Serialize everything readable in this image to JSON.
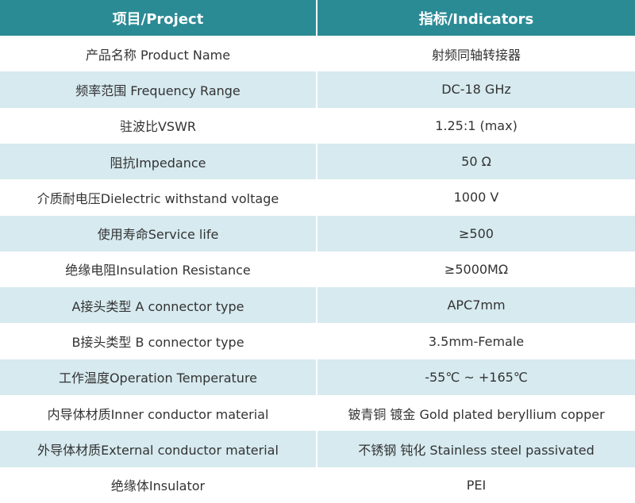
{
  "table": {
    "header": [
      "项目/Project",
      "指标/Indicators"
    ],
    "rows": [
      [
        "产品名称 Product Name",
        "射频同轴转接器"
      ],
      [
        "频率范围 Frequency Range",
        "DC-18 GHz"
      ],
      [
        "驻波比VSWR",
        "1.25:1 (max)"
      ],
      [
        "阻抗Impedance",
        "50 Ω"
      ],
      [
        "介质耐电压Dielectric withstand voltage",
        "1000 V"
      ],
      [
        "使用寿命Service life",
        "≥500"
      ],
      [
        "绝缘电阻Insulation Resistance",
        "≥5000MΩ"
      ],
      [
        "A接头类型 A connector type",
        "APC7mm"
      ],
      [
        "B接头类型 B connector type",
        "3.5mm-Female"
      ],
      [
        "工作温度Operation Temperature",
        "-55℃ ~ +165℃"
      ],
      [
        "内导体材质Inner conductor material",
        "铍青铜 镀金 Gold plated beryllium copper"
      ],
      [
        "外导体材质External conductor material",
        "不锈钢 钝化 Stainless steel passivated"
      ],
      [
        "绝缘体Insulator",
        "PEI"
      ]
    ]
  }
}
